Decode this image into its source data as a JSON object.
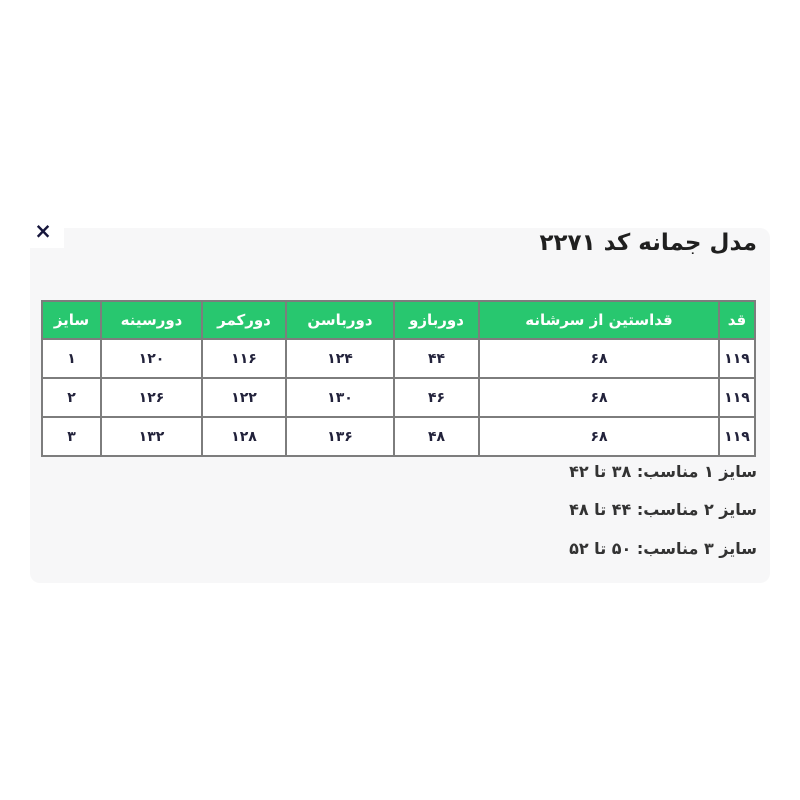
{
  "modal": {
    "title": "مدل جمانه کد ۲۲۷۱",
    "close_label": "×"
  },
  "size_table": {
    "headers": [
      "قد",
      "قداستین از سرشانه",
      "دوربازو",
      "دورباسن",
      "دورکمر",
      "دورسینه",
      "سایز"
    ],
    "rows": [
      [
        "۱۱۹",
        "۶۸",
        "۴۴",
        "۱۲۴",
        "۱۱۶",
        "۱۲۰",
        "۱"
      ],
      [
        "۱۱۹",
        "۶۸",
        "۴۶",
        "۱۳۰",
        "۱۲۲",
        "۱۲۶",
        "۲"
      ],
      [
        "۱۱۹",
        "۶۸",
        "۴۸",
        "۱۳۶",
        "۱۲۸",
        "۱۳۲",
        "۳"
      ]
    ],
    "header_bg_color": "#28c76f",
    "border_color": "#7d7d7d"
  },
  "notes": [
    "سایز ۱ مناسب: ۳۸ تا ۴۲",
    "سایز ۲ مناسب: ۴۴ تا ۴۸",
    "سایز ۳ مناسب: ۵۰ تا ۵۲"
  ]
}
